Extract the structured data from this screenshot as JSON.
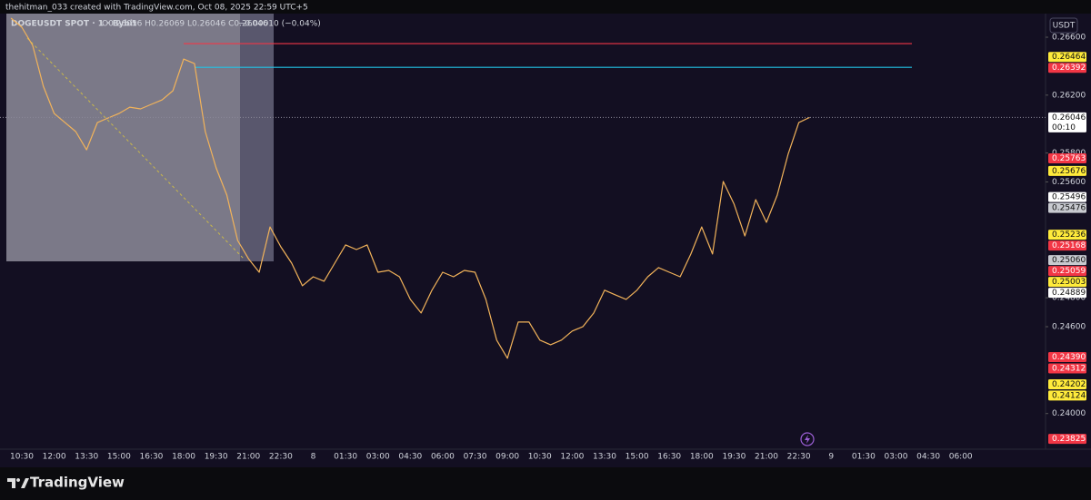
{
  "header": {
    "text": "thehitman_033 created with TradingView.com, Oct 08, 2025 22:59 UTC+5"
  },
  "legend": {
    "symbol": "DOGEUSDT SPOT · 1 · Bybit",
    "ohlc": "O0.26056  H0.26069  L0.26046  C0.26046",
    "change": "−0.00010 (−0.04%)"
  },
  "currency_button": "USDT",
  "footer": {
    "brand": "TradingView"
  },
  "chart_data": {
    "type": "line",
    "categories": [
      null,
      null,
      "10:30",
      null,
      null,
      "12:00",
      null,
      null,
      "13:30",
      null,
      null,
      "15:00",
      null,
      null,
      "16:30",
      null,
      null,
      "18:00",
      null,
      null,
      "19:30",
      null,
      null,
      "21:00",
      null,
      null,
      "22:30",
      null,
      null,
      "8",
      null,
      null,
      "01:30",
      null,
      null,
      "03:00",
      null,
      null,
      "04:30",
      null,
      null,
      "06:00",
      null,
      null,
      "07:30",
      null,
      null,
      "09:00",
      null,
      null,
      "10:30",
      null,
      null,
      "12:00",
      null,
      null,
      "13:30",
      null,
      null,
      "15:00",
      null,
      null,
      "16:30",
      null,
      null,
      "18:00",
      null,
      null,
      "19:30",
      null,
      null,
      "21:00",
      null,
      null,
      "22:30",
      null,
      null,
      "9",
      null,
      null,
      "01:30",
      null,
      null,
      "03:00",
      null,
      null,
      "04:30",
      null,
      null,
      "06:00",
      null
    ],
    "series": [
      {
        "name": "DOGEUSDT",
        "color": "#f2b35a",
        "values": [
          null,
          0.26732,
          0.26669,
          0.26544,
          0.26261,
          0.26073,
          0.2601,
          0.25948,
          0.25822,
          0.2601,
          0.26042,
          0.26073,
          0.26117,
          0.26105,
          0.26136,
          0.26167,
          0.2623,
          0.26449,
          0.26418,
          0.25948,
          0.25697,
          0.25509,
          0.25196,
          0.2507,
          0.24976,
          0.25289,
          0.25152,
          0.25039,
          0.24883,
          0.24945,
          0.24914,
          0.25039,
          0.25165,
          0.25133,
          0.25165,
          0.24976,
          0.24989,
          0.24945,
          0.24789,
          0.24695,
          0.24852,
          0.24976,
          0.24945,
          0.24989,
          0.24976,
          0.24789,
          0.24507,
          0.24382,
          0.24632,
          0.24632,
          0.24507,
          0.24475,
          0.24507,
          0.2457,
          0.24601,
          0.24695,
          0.24852,
          0.2482,
          0.24789,
          0.24852,
          0.24945,
          0.25008,
          0.24976,
          0.24945,
          0.25102,
          0.25289,
          0.25102,
          0.25603,
          0.25447,
          0.25227,
          0.25478,
          0.25321,
          0.25509,
          0.25791,
          0.2601,
          0.26046,
          null,
          null,
          null,
          null,
          null,
          null,
          null,
          null,
          null,
          null,
          null,
          null,
          null,
          null,
          null
        ]
      }
    ],
    "ylim": [
      0.23785,
      0.26782
    ],
    "yticks": [
      {
        "value": 0.266,
        "label": "0.26600"
      },
      {
        "value": 0.262,
        "label": "0.26200"
      },
      {
        "value": 0.258,
        "label": "0.25800"
      },
      {
        "value": 0.256,
        "label": "0.25600"
      },
      {
        "value": 0.248,
        "label": "0.24800"
      },
      {
        "value": 0.246,
        "label": "0.24600"
      },
      {
        "value": 0.24,
        "label": "0.24000"
      }
    ],
    "levels": [
      {
        "value": 0.26556,
        "color": "#f23645"
      },
      {
        "value": 0.26392,
        "color": "#22c3e6"
      }
    ],
    "price_badges": [
      {
        "value": 0.26464,
        "label": "0.26464",
        "color": "#ffeb3b"
      },
      {
        "value": 0.26392,
        "label": "0.26392",
        "color": "#f23645"
      },
      {
        "value": 0.26046,
        "label": "0.26046",
        "color": "#ffffff",
        "countdown": "00:10"
      },
      {
        "value": 0.25763,
        "label": "0.25763",
        "color": "#f23645"
      },
      {
        "value": 0.25676,
        "label": "0.25676",
        "color": "#ffeb3b"
      },
      {
        "value": 0.25496,
        "label": "0.25496",
        "color": "#ffffff"
      },
      {
        "value": 0.25476,
        "label": "0.25476",
        "color": "#c8cad0"
      },
      {
        "value": 0.25236,
        "label": "0.25236",
        "color": "#ffeb3b"
      },
      {
        "value": 0.25168,
        "label": "0.25168",
        "color": "#f23645"
      },
      {
        "value": 0.2506,
        "label": "0.25060",
        "color": "#c8cad0"
      },
      {
        "value": 0.25059,
        "label": "0.25059",
        "color": "#f23645"
      },
      {
        "value": 0.25003,
        "label": "0.25003",
        "color": "#ffeb3b"
      },
      {
        "value": 0.24889,
        "label": "0.24889",
        "color": "#ffffff"
      },
      {
        "value": 0.2439,
        "label": "0.24390",
        "color": "#f23645"
      },
      {
        "value": 0.24312,
        "label": "0.24312",
        "color": "#f23645"
      },
      {
        "value": 0.24202,
        "label": "0.24202",
        "color": "#ffeb3b"
      },
      {
        "value": 0.24124,
        "label": "0.24124",
        "color": "#ffeb3b"
      },
      {
        "value": 0.23825,
        "label": "0.23825",
        "color": "#f23645"
      }
    ]
  }
}
